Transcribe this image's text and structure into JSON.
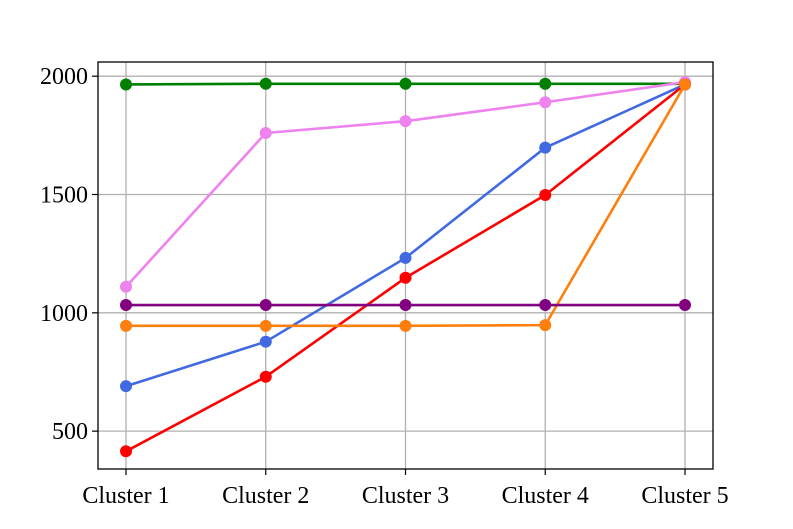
{
  "chart_data": {
    "type": "line",
    "title": "",
    "xlabel": "",
    "ylabel": "",
    "categories": [
      "Cluster 1",
      "Cluster 2",
      "Cluster 3",
      "Cluster 4",
      "Cluster 5"
    ],
    "ylim": [
      340,
      2060
    ],
    "yticks": [
      500,
      1000,
      1500,
      2000
    ],
    "grid": true,
    "legend": "none",
    "series": [
      {
        "color": "#008000",
        "values": [
          1965,
          1968,
          1968,
          1968,
          1968
        ]
      },
      {
        "color": "#ee82ee",
        "values": [
          1110,
          1760,
          1810,
          1890,
          1975
        ]
      },
      {
        "color": "#4169e1",
        "values": [
          690,
          878,
          1232,
          1698,
          1965
        ]
      },
      {
        "color": "#ff0000",
        "values": [
          415,
          730,
          1148,
          1498,
          1965
        ]
      },
      {
        "color": "#ff7f0e",
        "values": [
          945,
          945,
          945,
          948,
          1965
        ]
      },
      {
        "color": "#800080",
        "values": [
          1033,
          1033,
          1033,
          1033,
          1033
        ]
      }
    ]
  }
}
